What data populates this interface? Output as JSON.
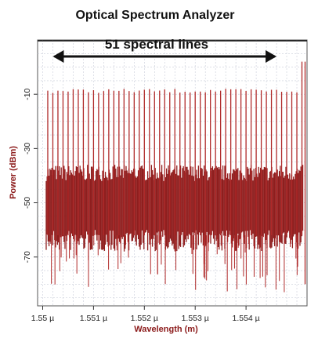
{
  "chart_data": {
    "type": "line",
    "title": "Optical Spectrum Analyzer",
    "annotation": "51 spectral lines",
    "xlabel": "Wavelength (m)",
    "ylabel": "Power (dBm)",
    "xlim": [
      1.5499,
      1.5552
    ],
    "ylim": [
      -88,
      10
    ],
    "x_ticks": [
      {
        "value": 1.55,
        "label": "1.55 µ"
      },
      {
        "value": 1.551,
        "label": "1.551 µ"
      },
      {
        "value": 1.552,
        "label": "1.552 µ"
      },
      {
        "value": 1.553,
        "label": "1.553 µ"
      },
      {
        "value": 1.554,
        "label": "1.554 µ"
      }
    ],
    "y_ticks": [
      {
        "value": -10,
        "label": "-10"
      },
      {
        "value": -30,
        "label": "-30"
      },
      {
        "value": -50,
        "label": "-50"
      },
      {
        "value": -70,
        "label": "-70"
      }
    ],
    "grid": true,
    "series": [
      {
        "color": "#b02a2a",
        "line_count": 51,
        "first_line_um": 1.5501,
        "last_line_um": 1.5551,
        "line_peak_dbm": -8,
        "outer_line_peak_dbm": 2,
        "noise_floor_dbm": -50
      }
    ],
    "double_arrow_span_um": [
      1.5502,
      1.5546
    ]
  }
}
